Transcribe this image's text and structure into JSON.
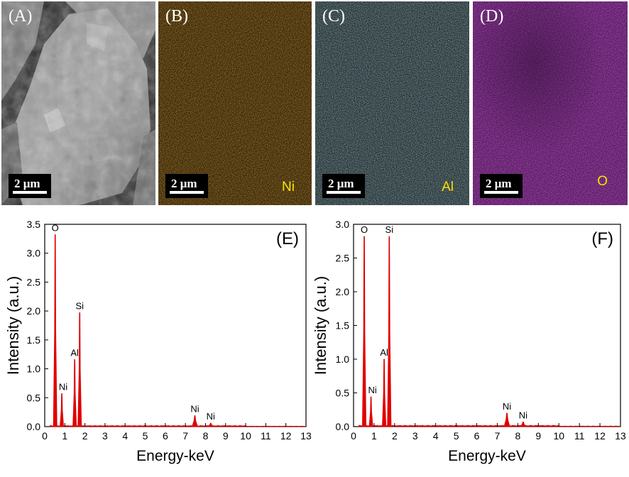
{
  "panels": {
    "a": {
      "letter": "(A)",
      "scale": "2 μm"
    },
    "b": {
      "letter": "(B)",
      "scale": "2 μm",
      "element": "Ni",
      "tint": "#6b4a12"
    },
    "c": {
      "letter": "(C)",
      "scale": "2 μm",
      "element": "Al",
      "tint": "#3f5a5e"
    },
    "d": {
      "letter": "(D)",
      "scale": "2 μm",
      "element": "O",
      "tint": "#7a1f86"
    }
  },
  "colors": {
    "spectrum": "#e00000",
    "element_label": "#f5e400"
  },
  "chart_data": [
    {
      "type": "area",
      "panel_label": "(E)",
      "xlabel": "Energy-keV",
      "ylabel": "Intensity (a.u.)",
      "xlim": [
        0,
        13
      ],
      "ylim": [
        0,
        3.5
      ],
      "xticks": [
        0,
        1,
        2,
        3,
        4,
        5,
        6,
        7,
        8,
        9,
        10,
        11,
        12,
        13
      ],
      "yticks": [
        0.0,
        0.5,
        1.0,
        1.5,
        2.0,
        2.5,
        3.0,
        3.5
      ],
      "ytick_labels": [
        "0.0",
        "0.5",
        "1.0",
        "1.5",
        "2.0",
        "2.5",
        "3.0",
        "3.5"
      ],
      "peaks": [
        {
          "label": "O",
          "x": 0.52,
          "y": 3.32
        },
        {
          "label": "Ni",
          "x": 0.85,
          "y": 0.57
        },
        {
          "label": "Al",
          "x": 1.49,
          "y": 1.16
        },
        {
          "label": "Si",
          "x": 1.74,
          "y": 1.97
        },
        {
          "label": "Ni",
          "x": 7.47,
          "y": 0.19
        },
        {
          "label": "Ni",
          "x": 8.26,
          "y": 0.06
        }
      ]
    },
    {
      "type": "area",
      "panel_label": "(F)",
      "xlabel": "Energy-keV",
      "ylabel": "Intensity (a.u.)",
      "xlim": [
        0,
        13
      ],
      "ylim": [
        0,
        3.0
      ],
      "xticks": [
        0,
        1,
        2,
        3,
        4,
        5,
        6,
        7,
        8,
        9,
        10,
        11,
        12,
        13
      ],
      "yticks": [
        0.0,
        0.5,
        1.0,
        1.5,
        2.0,
        2.5,
        3.0
      ],
      "ytick_labels": [
        "0.0",
        "0.5",
        "1.0",
        "1.5",
        "2.0",
        "2.5",
        "3.0"
      ],
      "peaks": [
        {
          "label": "O",
          "x": 0.52,
          "y": 2.82
        },
        {
          "label": "Ni",
          "x": 0.85,
          "y": 0.44
        },
        {
          "label": "Al",
          "x": 1.49,
          "y": 1.0
        },
        {
          "label": "Si",
          "x": 1.74,
          "y": 2.82
        },
        {
          "label": "Ni",
          "x": 7.47,
          "y": 0.2
        },
        {
          "label": "Ni",
          "x": 8.26,
          "y": 0.07
        }
      ]
    }
  ]
}
